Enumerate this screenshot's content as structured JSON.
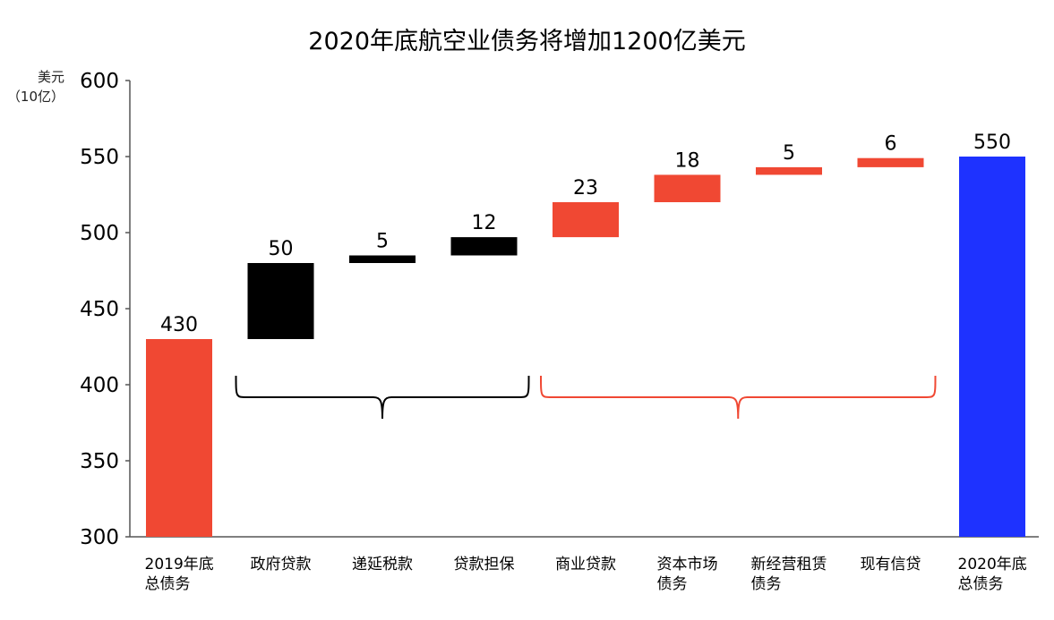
{
  "chart_data": {
    "type": "waterfall",
    "title": "2020年底航空业债务将增加1200亿美元",
    "ylabel": "美元\n（10亿）",
    "ylim": [
      300,
      600
    ],
    "yticks": [
      300,
      350,
      400,
      450,
      500,
      550,
      600
    ],
    "categories": [
      "2019年底\n总债务",
      "政府贷款",
      "递延税款",
      "贷款担保",
      "商业贷款",
      "资本市场\n债务",
      "新经营租赁\n债务",
      "现有信贷",
      "2020年底\n总债务"
    ],
    "values": [
      430,
      50,
      5,
      12,
      23,
      18,
      5,
      6,
      550
    ],
    "value_labels": [
      "430",
      "50",
      "5",
      "12",
      "23",
      "18",
      "5",
      "6",
      "550"
    ],
    "kinds": [
      "total",
      "delta",
      "delta",
      "delta",
      "delta",
      "delta",
      "delta",
      "delta",
      "total"
    ],
    "colors": [
      "#F04833",
      "#000000",
      "#000000",
      "#000000",
      "#F04833",
      "#F04833",
      "#F04833",
      "#F04833",
      "#1E32FF"
    ],
    "groups": [
      {
        "from": 1,
        "to": 3,
        "color": "#000000"
      },
      {
        "from": 4,
        "to": 7,
        "color": "#F04833"
      }
    ],
    "grid": false
  }
}
